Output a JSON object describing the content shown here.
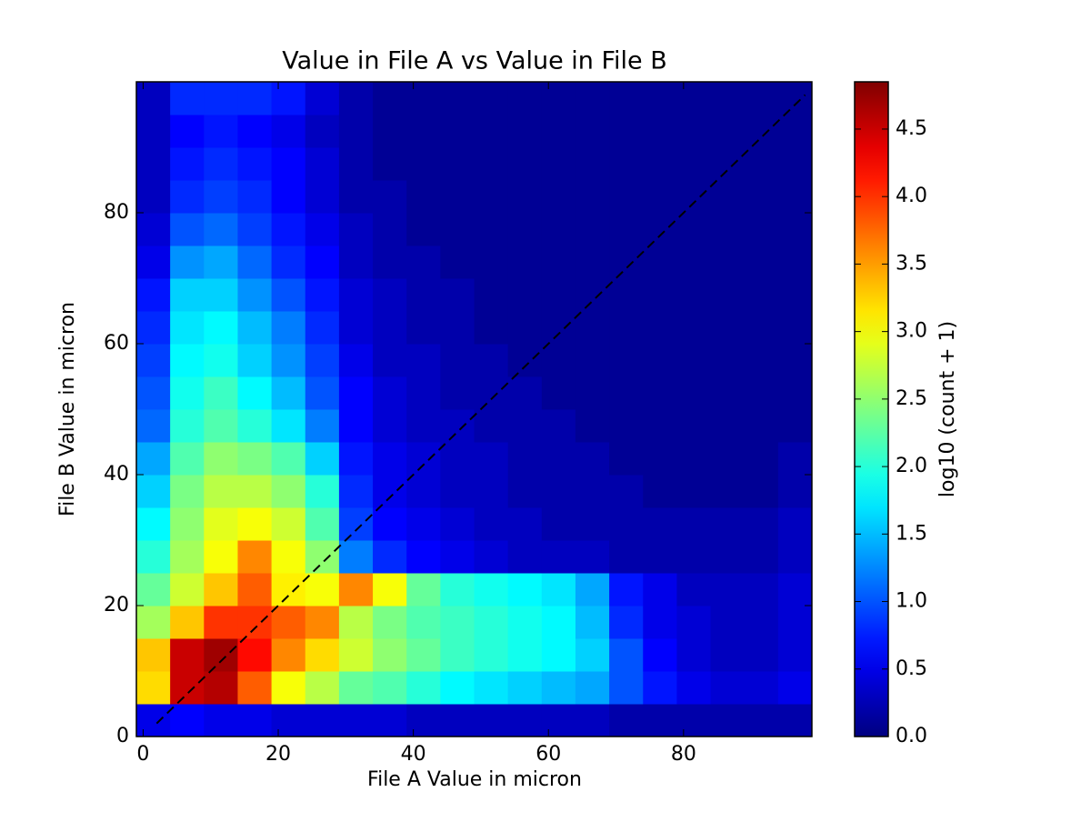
{
  "chart_data": {
    "type": "hexbin",
    "title": "Value in File A vs Value in File B",
    "xlabel": "File A Value in micron",
    "ylabel": "File B Value in micron",
    "colorbar_label": "log10 (count + 1)",
    "colormap": "jet",
    "xlim": [
      -1,
      99
    ],
    "ylim": [
      0,
      100
    ],
    "xticks": [
      0,
      20,
      40,
      60,
      80
    ],
    "yticks": [
      0,
      20,
      40,
      60,
      80
    ],
    "xbins": [
      -1,
      4,
      9,
      14,
      19,
      24,
      29,
      34,
      39,
      44,
      49,
      54,
      59,
      64,
      69,
      74,
      79,
      84,
      89,
      94,
      99
    ],
    "ybins": [
      0,
      5,
      10,
      15,
      20,
      25,
      30,
      35,
      40,
      45,
      50,
      55,
      60,
      65,
      70,
      75,
      80,
      85,
      90,
      95,
      100
    ],
    "values": [
      [
        0.5,
        0.6,
        0.5,
        0.5,
        0.4,
        0.4,
        0.4,
        0.4,
        0.3,
        0.3,
        0.3,
        0.3,
        0.3,
        0.3,
        0.2,
        0.2,
        0.2,
        0.2,
        0.2,
        0.2
      ],
      [
        3.2,
        4.5,
        4.6,
        3.8,
        3.0,
        2.7,
        2.3,
        2.2,
        2.0,
        1.8,
        1.7,
        1.6,
        1.5,
        1.4,
        1.0,
        0.7,
        0.5,
        0.4,
        0.4,
        0.5
      ],
      [
        3.3,
        4.5,
        4.7,
        4.2,
        3.6,
        3.2,
        2.8,
        2.5,
        2.3,
        2.1,
        2.0,
        1.9,
        1.8,
        1.6,
        1.0,
        0.6,
        0.4,
        0.3,
        0.3,
        0.4
      ],
      [
        2.6,
        3.3,
        4.0,
        4.0,
        3.8,
        3.6,
        2.7,
        2.4,
        2.2,
        2.1,
        2.0,
        1.9,
        1.8,
        1.5,
        0.8,
        0.5,
        0.4,
        0.3,
        0.3,
        0.4
      ],
      [
        2.3,
        2.8,
        3.3,
        3.8,
        3.1,
        3.0,
        3.6,
        3.0,
        2.3,
        2.0,
        1.9,
        1.8,
        1.7,
        1.4,
        0.7,
        0.5,
        0.3,
        0.3,
        0.3,
        0.4
      ],
      [
        2.0,
        2.6,
        3.0,
        3.6,
        3.0,
        2.5,
        1.2,
        0.8,
        0.6,
        0.5,
        0.4,
        0.3,
        0.3,
        0.3,
        0.2,
        0.2,
        0.2,
        0.2,
        0.2,
        0.3
      ],
      [
        1.8,
        2.5,
        2.9,
        3.0,
        2.8,
        2.2,
        0.9,
        0.6,
        0.5,
        0.4,
        0.3,
        0.3,
        0.2,
        0.2,
        0.2,
        0.2,
        0.2,
        0.2,
        0.2,
        0.3
      ],
      [
        1.6,
        2.4,
        2.7,
        2.7,
        2.5,
        2.0,
        0.8,
        0.5,
        0.4,
        0.3,
        0.3,
        0.2,
        0.2,
        0.2,
        0.2,
        0.1,
        0.1,
        0.1,
        0.1,
        0.2
      ],
      [
        1.4,
        2.2,
        2.5,
        2.4,
        2.2,
        1.6,
        0.7,
        0.5,
        0.4,
        0.3,
        0.3,
        0.2,
        0.2,
        0.2,
        0.1,
        0.1,
        0.1,
        0.1,
        0.1,
        0.2
      ],
      [
        1.1,
        2.0,
        2.2,
        2.0,
        1.7,
        1.2,
        0.6,
        0.4,
        0.3,
        0.3,
        0.2,
        0.2,
        0.2,
        0.1,
        0.1,
        0.1,
        0.1,
        0.1,
        0.1,
        0.1
      ],
      [
        1.0,
        1.9,
        2.1,
        1.8,
        1.5,
        1.0,
        0.6,
        0.4,
        0.3,
        0.2,
        0.2,
        0.2,
        0.1,
        0.1,
        0.1,
        0.1,
        0.1,
        0.1,
        0.1,
        0.1
      ],
      [
        0.9,
        1.8,
        1.9,
        1.6,
        1.3,
        0.9,
        0.5,
        0.3,
        0.3,
        0.2,
        0.2,
        0.1,
        0.1,
        0.1,
        0.1,
        0.1,
        0.1,
        0.1,
        0.1,
        0.1
      ],
      [
        0.8,
        1.7,
        1.8,
        1.5,
        1.2,
        0.8,
        0.4,
        0.3,
        0.2,
        0.2,
        0.1,
        0.1,
        0.1,
        0.1,
        0.1,
        0.1,
        0.1,
        0.1,
        0.1,
        0.1
      ],
      [
        0.7,
        1.6,
        1.6,
        1.3,
        1.0,
        0.7,
        0.4,
        0.3,
        0.2,
        0.2,
        0.1,
        0.1,
        0.1,
        0.1,
        0.1,
        0.1,
        0.1,
        0.1,
        0.1,
        0.1
      ],
      [
        0.5,
        1.3,
        1.4,
        1.1,
        0.8,
        0.6,
        0.3,
        0.2,
        0.2,
        0.1,
        0.1,
        0.1,
        0.1,
        0.1,
        0.1,
        0.1,
        0.1,
        0.1,
        0.1,
        0.1
      ],
      [
        0.4,
        1.0,
        1.1,
        0.9,
        0.7,
        0.5,
        0.3,
        0.2,
        0.1,
        0.1,
        0.1,
        0.1,
        0.1,
        0.1,
        0.1,
        0.1,
        0.1,
        0.1,
        0.1,
        0.1
      ],
      [
        0.3,
        0.8,
        0.9,
        0.8,
        0.6,
        0.4,
        0.2,
        0.2,
        0.1,
        0.1,
        0.1,
        0.1,
        0.1,
        0.1,
        0.1,
        0.1,
        0.1,
        0.1,
        0.1,
        0.1
      ],
      [
        0.3,
        0.7,
        0.8,
        0.7,
        0.6,
        0.4,
        0.2,
        0.1,
        0.1,
        0.1,
        0.1,
        0.1,
        0.1,
        0.1,
        0.1,
        0.1,
        0.1,
        0.1,
        0.1,
        0.1
      ],
      [
        0.3,
        0.6,
        0.7,
        0.6,
        0.5,
        0.3,
        0.2,
        0.1,
        0.1,
        0.1,
        0.1,
        0.1,
        0.1,
        0.1,
        0.1,
        0.1,
        0.1,
        0.1,
        0.1,
        0.1
      ],
      [
        0.3,
        0.8,
        0.8,
        0.8,
        0.7,
        0.4,
        0.2,
        0.1,
        0.1,
        0.1,
        0.1,
        0.1,
        0.1,
        0.1,
        0.1,
        0.1,
        0.1,
        0.1,
        0.1,
        0.1
      ]
    ],
    "clim": [
      0,
      4.85
    ],
    "cticks": [
      {
        "value": 0,
        "label": "0.0"
      },
      {
        "value": 0.5,
        "label": "0.5"
      },
      {
        "value": 1,
        "label": "1.0"
      },
      {
        "value": 1.5,
        "label": "1.5"
      },
      {
        "value": 2,
        "label": "2.0"
      },
      {
        "value": 2.5,
        "label": "2.5"
      },
      {
        "value": 3,
        "label": "3.0"
      },
      {
        "value": 3.5,
        "label": "3.5"
      },
      {
        "value": 4,
        "label": "4.0"
      },
      {
        "value": 4.5,
        "label": "4.5"
      }
    ],
    "reference_line": {
      "x": [
        2,
        98
      ],
      "y": [
        2,
        98
      ],
      "color": "#000000"
    }
  }
}
